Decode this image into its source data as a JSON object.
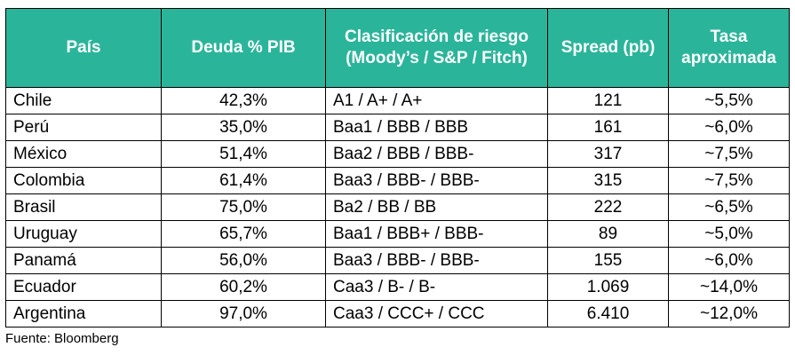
{
  "table": {
    "header_color": "#2ab59a",
    "headers": [
      "País",
      "Deuda % PIB",
      "Clasificación de riesgo (Moody’s / S&P / Fitch)",
      "Spread (pb)",
      "Tasa aproximada"
    ],
    "rows": [
      [
        "Chile",
        "42,3%",
        "A1 / A+ / A+",
        "121",
        "~5,5%"
      ],
      [
        "Perú",
        "35,0%",
        "Baa1 / BBB / BBB",
        "161",
        "~6,0%"
      ],
      [
        "México",
        "51,4%",
        "Baa2 / BBB / BBB-",
        "317",
        "~7,5%"
      ],
      [
        "Colombia",
        "61,4%",
        "Baa3 / BBB- / BBB-",
        "315",
        "~7,5%"
      ],
      [
        "Brasil",
        "75,0%",
        "Ba2 / BB / BB",
        "222",
        "~6,5%"
      ],
      [
        "Uruguay",
        "65,7%",
        "Baa1 / BBB+ / BBB-",
        "89",
        "~5,0%"
      ],
      [
        "Panamá",
        "56,0%",
        "Baa3 / BBB- / BBB-",
        "155",
        "~6,0%"
      ],
      [
        "Ecuador",
        "60,2%",
        "Caa3 / B- / B-",
        "1.069",
        "~14,0%"
      ],
      [
        "Argentina",
        "97,0%",
        "Caa3 / CCC+ / CCC",
        "6.410",
        "~12,0%"
      ]
    ]
  },
  "source": "Fuente: Bloomberg"
}
